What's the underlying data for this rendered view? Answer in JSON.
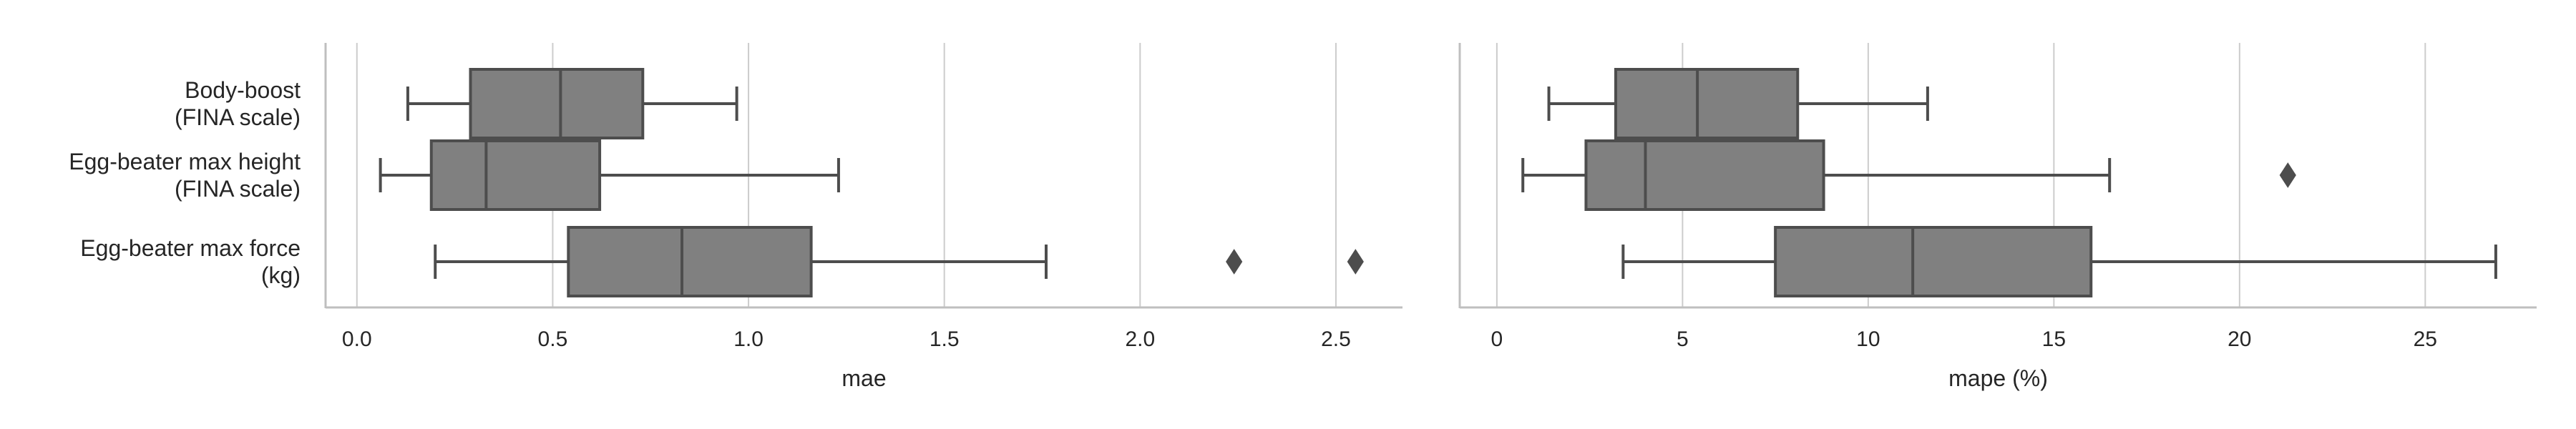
{
  "figure": {
    "categories": [
      [
        "Body-boost",
        "(FINA scale)"
      ],
      [
        "Egg-beater max height",
        "(FINA scale)"
      ],
      [
        "Egg-beater max force",
        "(kg)"
      ]
    ],
    "colors": {
      "box": "#808080",
      "line": "#4d4d4d",
      "grid": "#cccccc",
      "axis": "#bfbfbf",
      "text": "#262626"
    }
  },
  "chart_data": [
    {
      "type": "box",
      "xlabel": "mae",
      "ylabel": "",
      "xlim": [
        -0.08,
        2.67
      ],
      "xticks": [
        0.0,
        0.5,
        1.0,
        1.5,
        2.0,
        2.5
      ],
      "xtick_labels": [
        "0.0",
        "0.5",
        "1.0",
        "1.5",
        "2.0",
        "2.5"
      ],
      "grid": "vertical",
      "boxes": [
        {
          "category": "Body-boost (FINA scale)",
          "whisker_low": 0.13,
          "q1": 0.29,
          "median": 0.52,
          "q3": 0.73,
          "whisker_high": 0.97,
          "outliers": []
        },
        {
          "category": "Egg-beater max height (FINA scale)",
          "whisker_low": 0.06,
          "q1": 0.19,
          "median": 0.33,
          "q3": 0.62,
          "whisker_high": 1.23,
          "outliers": []
        },
        {
          "category": "Egg-beater max force (kg)",
          "whisker_low": 0.2,
          "q1": 0.54,
          "median": 0.83,
          "q3": 1.16,
          "whisker_high": 1.76,
          "outliers": [
            2.24,
            2.55
          ]
        }
      ]
    },
    {
      "type": "box",
      "xlabel": "mape (%)",
      "ylabel": "",
      "xlim": [
        -1.0,
        28.0
      ],
      "xticks": [
        0,
        5,
        10,
        15,
        20,
        25
      ],
      "xtick_labels": [
        "0",
        "5",
        "10",
        "15",
        "20",
        "25"
      ],
      "grid": "vertical",
      "boxes": [
        {
          "category": "Body-boost (FINA scale)",
          "whisker_low": 1.4,
          "q1": 3.2,
          "median": 5.4,
          "q3": 8.1,
          "whisker_high": 11.6,
          "outliers": []
        },
        {
          "category": "Egg-beater max height (FINA scale)",
          "whisker_low": 0.7,
          "q1": 2.4,
          "median": 4.0,
          "q3": 8.8,
          "whisker_high": 16.5,
          "outliers": [
            21.3
          ]
        },
        {
          "category": "Egg-beater max force (kg)",
          "whisker_low": 3.4,
          "q1": 7.5,
          "median": 11.2,
          "q3": 16.0,
          "whisker_high": 26.9,
          "outliers": []
        }
      ]
    }
  ]
}
